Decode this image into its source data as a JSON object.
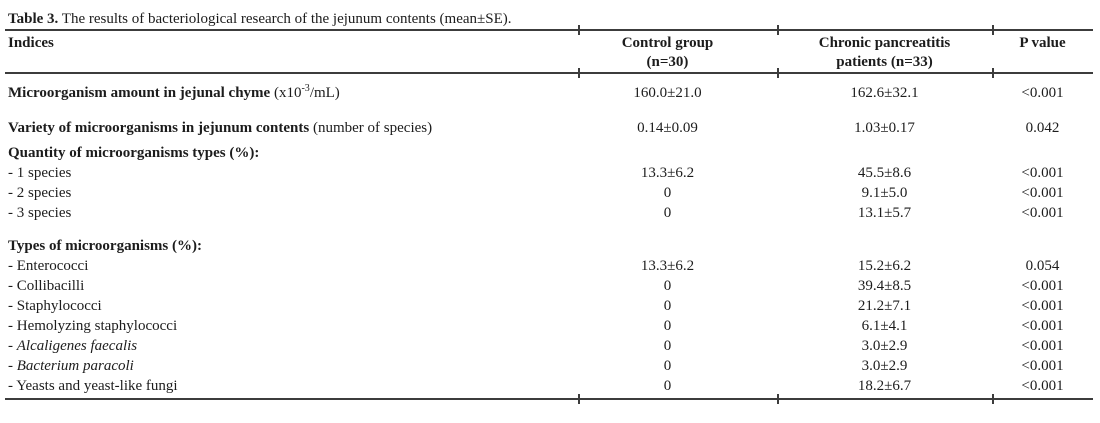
{
  "caption": {
    "bold": "Table 3.",
    "rest": " The results of bacteriological research of the jejunum contents (mean±SE)."
  },
  "header": {
    "indices": "Indices",
    "control_line1": "Control group",
    "control_line2": "(n=30)",
    "patients_line1": "Chronic pancreatitis",
    "patients_line2": "patients (n=33)",
    "p": "P value"
  },
  "rows": [
    {
      "label_bold": "Microorganism amount in jejunal chyme",
      "label": " (x10",
      "label_sup": "-3",
      "label_post": "/mL)",
      "control": "160.0±21.0",
      "patients": "162.6±32.1",
      "p": "<0.001"
    },
    {
      "label_bold": "Variety of microorganisms in jejunum contents",
      "label": " (number of species)",
      "control": "0.14±0.09",
      "patients": "1.03±0.17",
      "p": "0.042"
    },
    {
      "label_bold": "Quantity of microorganisms types (%):"
    },
    {
      "label": "- 1 species",
      "control": "13.3±6.2",
      "patients": "45.5±8.6",
      "p": "<0.001"
    },
    {
      "label": "- 2 species",
      "control": "0",
      "patients": "9.1±5.0",
      "p": "<0.001"
    },
    {
      "label": "- 3 species",
      "control": "0",
      "patients": "13.1±5.7",
      "p": "<0.001"
    },
    {
      "label_bold": "Types of microorganisms (%):"
    },
    {
      "label": "- Enterococci",
      "control": "13.3±6.2",
      "patients": "15.2±6.2",
      "p": "0.054"
    },
    {
      "label": "- Collibacilli",
      "control": "0",
      "patients": "39.4±8.5",
      "p": "<0.001"
    },
    {
      "label": "- Staphylococci",
      "control": "0",
      "patients": "21.2±7.1",
      "p": "<0.001"
    },
    {
      "label": "- Hemolyzing staphylococci",
      "control": "0",
      "patients": "6.1±4.1",
      "p": "<0.001"
    },
    {
      "label": "- ",
      "label_italic": "Alcaligenes faecalis",
      "control": "0",
      "patients": "3.0±2.9",
      "p": "<0.001"
    },
    {
      "label": "- ",
      "label_italic": "Bacterium paracoli",
      "control": "0",
      "patients": "3.0±2.9",
      "p": "<0.001"
    },
    {
      "label": "- Yeasts and yeast-like fungi",
      "control": "0",
      "patients": "18.2±6.7",
      "p": "<0.001"
    }
  ]
}
